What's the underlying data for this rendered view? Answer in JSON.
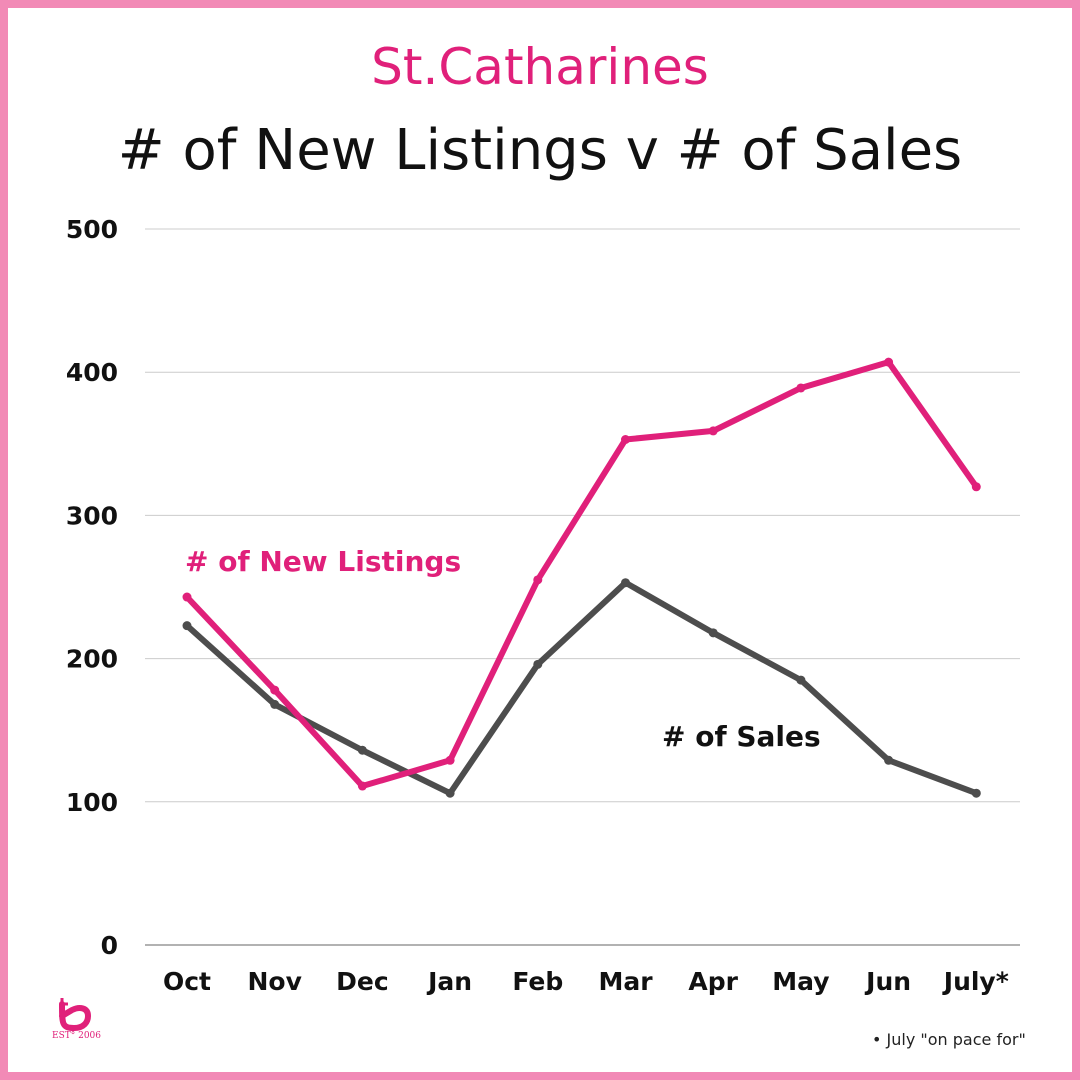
{
  "header": {
    "city": "St.Catharines",
    "title": "# of New Listings v # of Sales"
  },
  "footnote": "July \"on pace for\"",
  "logo": {
    "est": "EST° 2006"
  },
  "colors": {
    "border": "#f28ab6",
    "accent": "#e0207a",
    "sales": "#4d4d4d",
    "grid": "#cccccc"
  },
  "chart_data": {
    "type": "line",
    "title": "# of New Listings v # of Sales",
    "xlabel": "",
    "ylabel": "",
    "categories": [
      "Oct",
      "Nov",
      "Dec",
      "Jan",
      "Feb",
      "Mar",
      "Apr",
      "May",
      "Jun",
      "July*"
    ],
    "yticks": [
      0,
      100,
      200,
      300,
      400,
      500
    ],
    "ylim": [
      0,
      500
    ],
    "grid": true,
    "series": [
      {
        "name": "# of New Listings",
        "color": "#e0207a",
        "values": [
          243,
          178,
          111,
          129,
          255,
          353,
          359,
          389,
          407,
          320
        ]
      },
      {
        "name": "# of Sales",
        "color": "#4d4d4d",
        "values": [
          223,
          168,
          136,
          106,
          196,
          253,
          218,
          185,
          129,
          106
        ]
      }
    ]
  }
}
